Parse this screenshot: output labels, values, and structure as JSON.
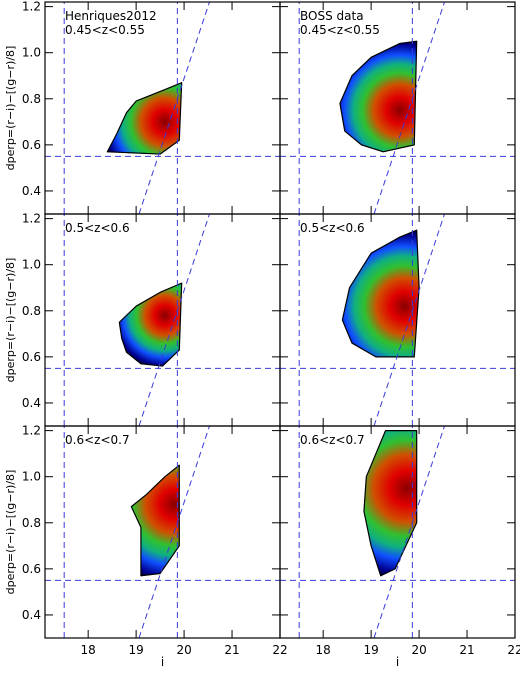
{
  "chart_data": [
    {
      "type": "density",
      "annotations": [
        "Henriques2012",
        "0.45<z<0.55"
      ],
      "ylabel": "dperp=(r−i)−[(g−r)/8]",
      "xlim": [
        17.1,
        22
      ],
      "ylim": [
        0.3,
        1.22
      ],
      "yticks": [
        0.4,
        0.6,
        0.8,
        {
          "value": 1.0,
          "label": "1.0"
        },
        1.2
      ],
      "outline": {
        "x": [
          18.4,
          19.5,
          19.9,
          19.95,
          19.6,
          19.0,
          18.8,
          18.6
        ],
        "y": [
          0.57,
          0.56,
          0.62,
          0.87,
          0.84,
          0.79,
          0.74,
          0.65
        ]
      },
      "peak": {
        "x": 19.6,
        "y": 0.7
      },
      "lines": [
        {
          "x": [
            17.5,
            17.5
          ],
          "y": [
            0.3,
            1.22
          ]
        },
        {
          "x": [
            19.86,
            19.86
          ],
          "y": [
            0.3,
            1.22
          ]
        },
        {
          "x": [
            17.1,
            22
          ],
          "y": [
            0.55,
            0.55
          ]
        },
        {
          "x": [
            19.06,
            20.53
          ],
          "y": [
            0.3,
            1.22
          ]
        }
      ]
    },
    {
      "type": "density",
      "annotations": [
        "BOSS data",
        "0.45<z<0.55"
      ],
      "xlim": [
        17.1,
        22
      ],
      "ylim": [
        0.3,
        1.22
      ],
      "outline": {
        "x": [
          19.25,
          19.9,
          19.95,
          19.6,
          19.0,
          18.6,
          18.35,
          18.45,
          18.8
        ],
        "y": [
          0.57,
          0.6,
          1.05,
          1.04,
          0.98,
          0.9,
          0.78,
          0.66,
          0.6
        ]
      },
      "peak": {
        "x": 19.6,
        "y": 0.75
      },
      "lines": [
        {
          "x": [
            17.5,
            17.5
          ],
          "y": [
            0.3,
            1.22
          ]
        },
        {
          "x": [
            19.86,
            19.86
          ],
          "y": [
            0.3,
            1.22
          ]
        },
        {
          "x": [
            17.1,
            22
          ],
          "y": [
            0.55,
            0.55
          ]
        },
        {
          "x": [
            19.06,
            20.53
          ],
          "y": [
            0.3,
            1.22
          ]
        }
      ]
    },
    {
      "type": "density",
      "annotations": [
        "0.5<z<0.6"
      ],
      "ylabel": "dperp=(r−i)−[(g−r)/8]",
      "xlim": [
        17.1,
        22
      ],
      "ylim": [
        0.3,
        1.22
      ],
      "yticks": [
        0.4,
        0.6,
        0.8,
        {
          "value": 1.0,
          "label": "1.0"
        },
        1.2
      ],
      "outline": {
        "x": [
          19.1,
          19.55,
          19.9,
          19.95,
          19.5,
          19.0,
          18.65,
          18.7,
          18.8
        ],
        "y": [
          0.57,
          0.56,
          0.63,
          0.92,
          0.88,
          0.82,
          0.75,
          0.68,
          0.62
        ]
      },
      "peak": {
        "x": 19.6,
        "y": 0.78
      },
      "lines": [
        {
          "x": [
            17.5,
            17.5
          ],
          "y": [
            0.3,
            1.22
          ]
        },
        {
          "x": [
            19.86,
            19.86
          ],
          "y": [
            0.3,
            1.22
          ]
        },
        {
          "x": [
            17.1,
            22
          ],
          "y": [
            0.55,
            0.55
          ]
        },
        {
          "x": [
            19.06,
            20.53
          ],
          "y": [
            0.3,
            1.22
          ]
        }
      ]
    },
    {
      "type": "density",
      "annotations": [
        "0.5<z<0.6"
      ],
      "xlim": [
        17.1,
        22
      ],
      "ylim": [
        0.3,
        1.22
      ],
      "outline": {
        "x": [
          19.1,
          19.9,
          20.0,
          19.95,
          19.6,
          19.0,
          18.55,
          18.4,
          18.6
        ],
        "y": [
          0.6,
          0.6,
          0.9,
          1.15,
          1.12,
          1.05,
          0.9,
          0.76,
          0.66
        ]
      },
      "peak": {
        "x": 19.7,
        "y": 0.82
      },
      "lines": [
        {
          "x": [
            17.5,
            17.5
          ],
          "y": [
            0.3,
            1.22
          ]
        },
        {
          "x": [
            19.86,
            19.86
          ],
          "y": [
            0.3,
            1.22
          ]
        },
        {
          "x": [
            17.1,
            22
          ],
          "y": [
            0.55,
            0.55
          ]
        },
        {
          "x": [
            19.06,
            20.53
          ],
          "y": [
            0.3,
            1.22
          ]
        }
      ]
    },
    {
      "type": "density",
      "annotations": [
        "0.6<z<0.7"
      ],
      "ylabel": "dperp=(r−i)−[(g−r)/8]",
      "xlabel": "i",
      "xlim": [
        17.1,
        22
      ],
      "ylim": [
        0.3,
        1.22
      ],
      "xticks": [
        18,
        19,
        20,
        21,
        22
      ],
      "yticks": [
        0.4,
        0.6,
        0.8,
        {
          "value": 1.0,
          "label": "1.0"
        },
        1.2
      ],
      "outline": {
        "x": [
          19.1,
          19.5,
          19.9,
          19.9,
          19.6,
          19.2,
          18.9,
          19.1
        ],
        "y": [
          0.57,
          0.58,
          0.7,
          1.05,
          1.0,
          0.92,
          0.87,
          0.78
        ]
      },
      "peak": {
        "x": 19.8,
        "y": 0.88
      },
      "lines": [
        {
          "x": [
            17.5,
            17.5
          ],
          "y": [
            0.3,
            1.22
          ]
        },
        {
          "x": [
            19.86,
            19.86
          ],
          "y": [
            0.3,
            1.22
          ]
        },
        {
          "x": [
            17.1,
            22
          ],
          "y": [
            0.55,
            0.55
          ]
        },
        {
          "x": [
            19.06,
            20.53
          ],
          "y": [
            0.3,
            1.22
          ]
        }
      ]
    },
    {
      "type": "density",
      "annotations": [
        "0.6<z<0.7"
      ],
      "xlabel": "i",
      "xlim": [
        17.1,
        22
      ],
      "ylim": [
        0.3,
        1.22
      ],
      "xticks": [
        18,
        19,
        20,
        21,
        22
      ],
      "outline": {
        "x": [
          19.2,
          19.5,
          19.95,
          19.95,
          19.3,
          18.9,
          18.85,
          19.0
        ],
        "y": [
          0.57,
          0.6,
          0.8,
          1.2,
          1.2,
          1.0,
          0.85,
          0.7
        ]
      },
      "peak": {
        "x": 19.75,
        "y": 0.95
      },
      "lines": [
        {
          "x": [
            17.5,
            17.5
          ],
          "y": [
            0.3,
            1.22
          ]
        },
        {
          "x": [
            19.86,
            19.86
          ],
          "y": [
            0.3,
            1.22
          ]
        },
        {
          "x": [
            17.1,
            22
          ],
          "y": [
            0.55,
            0.55
          ]
        },
        {
          "x": [
            19.06,
            20.53
          ],
          "y": [
            0.3,
            1.22
          ]
        }
      ]
    }
  ]
}
